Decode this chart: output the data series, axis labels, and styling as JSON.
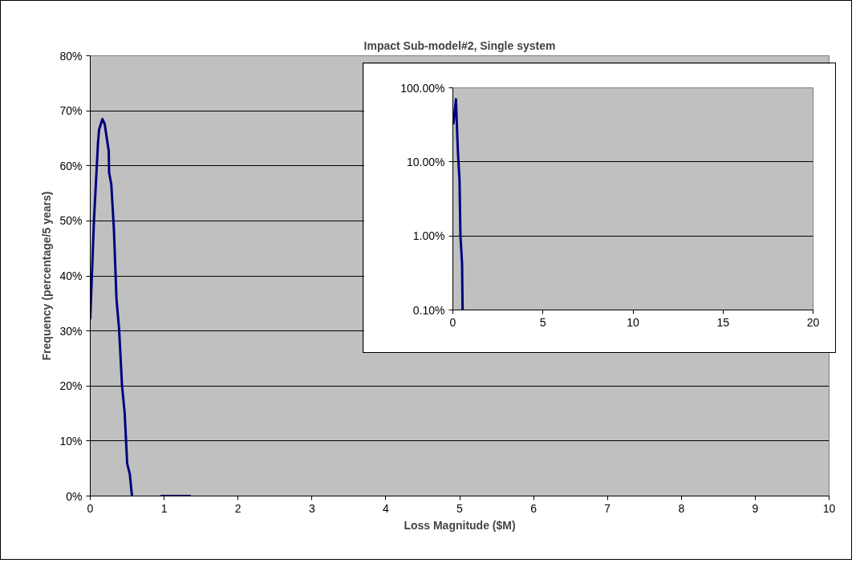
{
  "chart_data": [
    {
      "type": "line",
      "title": "Impact Sub-model#2, Single system",
      "xlabel": "Loss Magnitude ($M)",
      "ylabel": "Frequency (percentage/5 years)",
      "x": [
        0,
        0.05,
        0.105,
        0.12,
        0.165,
        0.195,
        0.25,
        0.255,
        0.285,
        0.32,
        0.355,
        0.39,
        0.43,
        0.465,
        0.5,
        0.535,
        0.565,
        0.75,
        0.95,
        1.36
      ],
      "values": [
        32.1,
        50,
        64.2,
        66.6,
        68.5,
        67.6,
        62.7,
        58.8,
        56.6,
        48.5,
        35.8,
        30.4,
        20.1,
        15.2,
        5.9,
        4.0,
        0,
        null,
        0,
        0
      ],
      "color": "#000080",
      "xlim": [
        0,
        10
      ],
      "ylim": [
        0,
        80
      ],
      "xticks": [
        0,
        1,
        2,
        3,
        4,
        5,
        6,
        7,
        8,
        9,
        10
      ],
      "yticks": [
        {
          "value": 0,
          "label": "0%"
        },
        {
          "value": 10,
          "label": "10%"
        },
        {
          "value": 20,
          "label": "20%"
        },
        {
          "value": 30,
          "label": "30%"
        },
        {
          "value": 40,
          "label": "40%"
        },
        {
          "value": 50,
          "label": "50%"
        },
        {
          "value": 60,
          "label": "60%"
        },
        {
          "value": 70,
          "label": "70%"
        },
        {
          "value": 80,
          "label": "80%"
        }
      ],
      "grid": "y"
    },
    {
      "type": "line",
      "log": "y",
      "x": [
        0.03,
        0.17,
        0.25,
        0.29,
        0.37,
        0.42,
        0.51,
        0.54
      ],
      "values": [
        32,
        70,
        21,
        12.3,
        5.7,
        1.0,
        0.43,
        0.1
      ],
      "color": "#000080",
      "xlim": [
        0,
        20
      ],
      "ylim": [
        0.1,
        100
      ],
      "xticks": [
        0,
        5,
        10,
        15,
        20
      ],
      "yticks": [
        {
          "value": 0.1,
          "label": "0.10%"
        },
        {
          "value": 1,
          "label": "1.00%"
        },
        {
          "value": 10,
          "label": "10.00%"
        },
        {
          "value": 100,
          "label": "100.00%"
        }
      ],
      "grid": "y"
    }
  ]
}
